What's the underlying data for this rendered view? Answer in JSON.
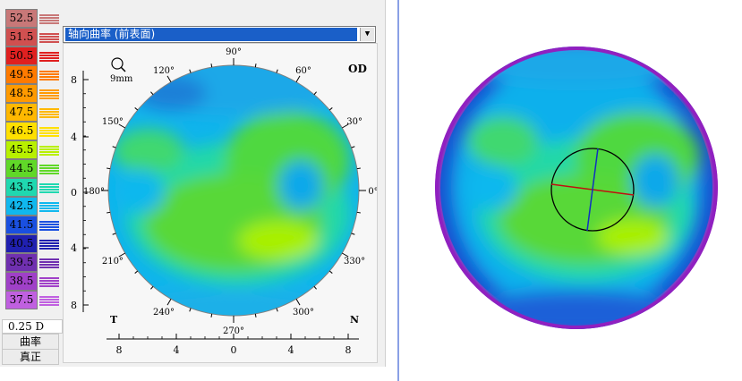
{
  "scale": {
    "rows": [
      {
        "label": "52.5",
        "color": "#c87878"
      },
      {
        "label": "51.5",
        "color": "#d05050"
      },
      {
        "label": "50.5",
        "color": "#e02020"
      },
      {
        "label": "49.5",
        "color": "#ff7a00"
      },
      {
        "label": "48.5",
        "color": "#ff9a00"
      },
      {
        "label": "47.5",
        "color": "#ffb800"
      },
      {
        "label": "46.5",
        "color": "#ffe000"
      },
      {
        "label": "45.5",
        "color": "#b8f000"
      },
      {
        "label": "44.5",
        "color": "#60d828"
      },
      {
        "label": "43.5",
        "color": "#20d8b0"
      },
      {
        "label": "42.5",
        "color": "#10b8ee"
      },
      {
        "label": "41.5",
        "color": "#1a50e0"
      },
      {
        "label": "40.5",
        "color": "#2020b0"
      },
      {
        "label": "39.5",
        "color": "#7030b0"
      },
      {
        "label": "38.5",
        "color": "#a040c8"
      },
      {
        "label": "37.5",
        "color": "#c060e0"
      }
    ],
    "step": "0.25 D",
    "btn_curvature": "曲率",
    "btn_true": "真正"
  },
  "dropdown": {
    "value": "轴向曲率 (前表面)"
  },
  "map": {
    "eye": "OD",
    "zoom_label": "9mm",
    "angle_labels": [
      "90°",
      "60°",
      "30°",
      "0°",
      "330°",
      "300°",
      "270°",
      "240°",
      "210°",
      "180°",
      "150°",
      "120°"
    ],
    "temporal": "T",
    "nasal": "N",
    "y_ticks": [
      "8",
      "4",
      "0",
      "4",
      "8"
    ],
    "x_ticks": [
      "8",
      "4",
      "0",
      "4",
      "8"
    ]
  }
}
